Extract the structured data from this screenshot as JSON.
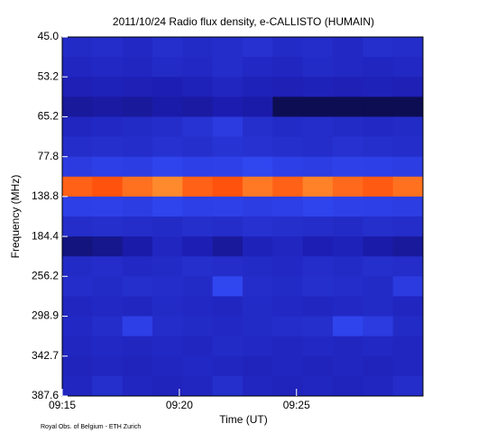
{
  "chart_data": {
    "type": "spectrogram",
    "title": "2011/10/24  Radio flux density, e-CALLISTO (HUMAIN)",
    "x_label": "Time (UT)",
    "y_label": "Frequency (MHz)",
    "footnote": "Royal Obs. of Belgium - ETH Zurich",
    "xlim": [
      555,
      570.4
    ],
    "xticks": [
      {
        "value": 555,
        "label": "09:15"
      },
      {
        "value": 560,
        "label": "09:20"
      },
      {
        "value": 565,
        "label": "09:25"
      }
    ],
    "yticks": [
      {
        "value": 45,
        "label": "45.0"
      },
      {
        "value": 53.2,
        "label": "53.2"
      },
      {
        "value": 65.2,
        "label": "65.2"
      },
      {
        "value": 77.8,
        "label": "77.8"
      },
      {
        "value": 138.8,
        "label": "138.8"
      },
      {
        "value": 184.4,
        "label": "184.4"
      },
      {
        "value": 256.2,
        "label": "256.2"
      },
      {
        "value": 298.9,
        "label": "298.9"
      },
      {
        "value": 342.7,
        "label": "342.7"
      },
      {
        "value": 387.6,
        "label": "387.6"
      }
    ],
    "zlim": [
      0,
      1
    ],
    "colors": [
      "#000000",
      "#1c1cb0",
      "#3550ff",
      "#ff3a00",
      "#ffff70"
    ],
    "z": [
      [
        0.32,
        0.33,
        0.31,
        0.34,
        0.32,
        0.33,
        0.35,
        0.32,
        0.33,
        0.31,
        0.34,
        0.33
      ],
      [
        0.3,
        0.31,
        0.3,
        0.32,
        0.31,
        0.33,
        0.31,
        0.3,
        0.32,
        0.31,
        0.3,
        0.31
      ],
      [
        0.27,
        0.28,
        0.27,
        0.26,
        0.28,
        0.3,
        0.28,
        0.27,
        0.28,
        0.27,
        0.28,
        0.27
      ],
      [
        0.22,
        0.23,
        0.22,
        0.24,
        0.23,
        0.25,
        0.24,
        0.12,
        0.12,
        0.12,
        0.12,
        0.12
      ],
      [
        0.3,
        0.31,
        0.32,
        0.33,
        0.36,
        0.4,
        0.34,
        0.32,
        0.33,
        0.32,
        0.31,
        0.32
      ],
      [
        0.33,
        0.34,
        0.33,
        0.35,
        0.34,
        0.36,
        0.35,
        0.34,
        0.33,
        0.35,
        0.34,
        0.33
      ],
      [
        0.4,
        0.42,
        0.41,
        0.44,
        0.42,
        0.43,
        0.45,
        0.42,
        0.41,
        0.43,
        0.42,
        0.41
      ],
      [
        0.8,
        0.78,
        0.82,
        0.85,
        0.8,
        0.78,
        0.83,
        0.8,
        0.84,
        0.81,
        0.79,
        0.82
      ],
      [
        0.42,
        0.43,
        0.41,
        0.44,
        0.42,
        0.43,
        0.41,
        0.42,
        0.44,
        0.43,
        0.42,
        0.41
      ],
      [
        0.33,
        0.34,
        0.33,
        0.32,
        0.34,
        0.33,
        0.35,
        0.34,
        0.33,
        0.32,
        0.34,
        0.33
      ],
      [
        0.18,
        0.2,
        0.24,
        0.3,
        0.26,
        0.22,
        0.28,
        0.3,
        0.26,
        0.28,
        0.24,
        0.22
      ],
      [
        0.32,
        0.33,
        0.31,
        0.32,
        0.34,
        0.33,
        0.32,
        0.31,
        0.33,
        0.32,
        0.34,
        0.33
      ],
      [
        0.33,
        0.32,
        0.34,
        0.33,
        0.32,
        0.45,
        0.33,
        0.32,
        0.34,
        0.33,
        0.32,
        0.4
      ],
      [
        0.3,
        0.31,
        0.3,
        0.32,
        0.31,
        0.3,
        0.32,
        0.31,
        0.3,
        0.31,
        0.32,
        0.3
      ],
      [
        0.31,
        0.33,
        0.42,
        0.33,
        0.32,
        0.31,
        0.32,
        0.33,
        0.34,
        0.44,
        0.4,
        0.32
      ],
      [
        0.3,
        0.31,
        0.3,
        0.31,
        0.3,
        0.32,
        0.31,
        0.3,
        0.31,
        0.3,
        0.31,
        0.3
      ],
      [
        0.29,
        0.3,
        0.29,
        0.3,
        0.31,
        0.3,
        0.29,
        0.3,
        0.29,
        0.3,
        0.29,
        0.3
      ],
      [
        0.3,
        0.34,
        0.3,
        0.29,
        0.3,
        0.34,
        0.3,
        0.29,
        0.3,
        0.29,
        0.3,
        0.33
      ]
    ]
  }
}
